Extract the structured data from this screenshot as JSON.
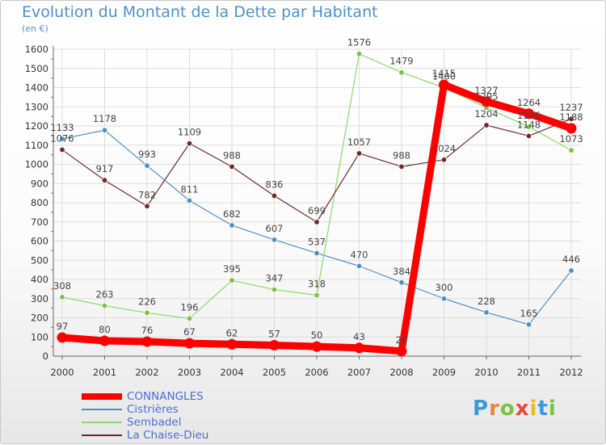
{
  "title": "Evolution du Montant de la Dette par Habitant",
  "subtitle": "(en €)",
  "logo": "Proxiti",
  "colors": {
    "title": "#4c8fd0",
    "grid": "#dddddd",
    "axis": "#666666",
    "logo_letters": [
      "#3a9bd8",
      "#e8873a",
      "#7cc242",
      "#e84a3a",
      "#f2b620",
      "#3a9bd8",
      "#7cc242"
    ]
  },
  "chart_data": {
    "type": "line",
    "title": "Evolution du Montant de la Dette par Habitant",
    "ylabel": "(en €)",
    "xlabel": "",
    "x": [
      "2000",
      "2001",
      "2002",
      "2003",
      "2004",
      "2005",
      "2006",
      "2007",
      "2008",
      "2009",
      "2010",
      "2011",
      "2012"
    ],
    "ylim": [
      0,
      1600
    ],
    "yticks": [
      0,
      100,
      200,
      300,
      400,
      500,
      600,
      700,
      800,
      900,
      1000,
      1100,
      1200,
      1300,
      1400,
      1500,
      1600
    ],
    "grid": true,
    "legend_position": "bottom-left",
    "series": [
      {
        "name": "CONNANGLES",
        "color": "#ff0000",
        "marker": "#ff0000",
        "bold": true,
        "values": [
          97,
          80,
          76,
          67,
          62,
          57,
          50,
          43,
          26,
          1415,
          1327,
          1264,
          1188
        ]
      },
      {
        "name": "Cistrières",
        "color": "#4f8fc8",
        "marker": "#4f8fc8",
        "bold": false,
        "values": [
          1133,
          1178,
          993,
          811,
          682,
          607,
          537,
          470,
          384,
          300,
          228,
          165,
          446
        ]
      },
      {
        "name": "Sembadel",
        "color": "#8cd86a",
        "marker": "#7cc242",
        "bold": false,
        "values": [
          308,
          263,
          226,
          196,
          395,
          347,
          318,
          1576,
          1479,
          1400,
          1295,
          1196,
          1073
        ]
      },
      {
        "name": "La Chaise-Dieu",
        "color": "#6e2a2a",
        "marker": "#6e2a2a",
        "bold": false,
        "values": [
          1076,
          917,
          782,
          1109,
          988,
          836,
          699,
          1057,
          988,
          1024,
          1204,
          1148,
          1237
        ]
      }
    ]
  }
}
